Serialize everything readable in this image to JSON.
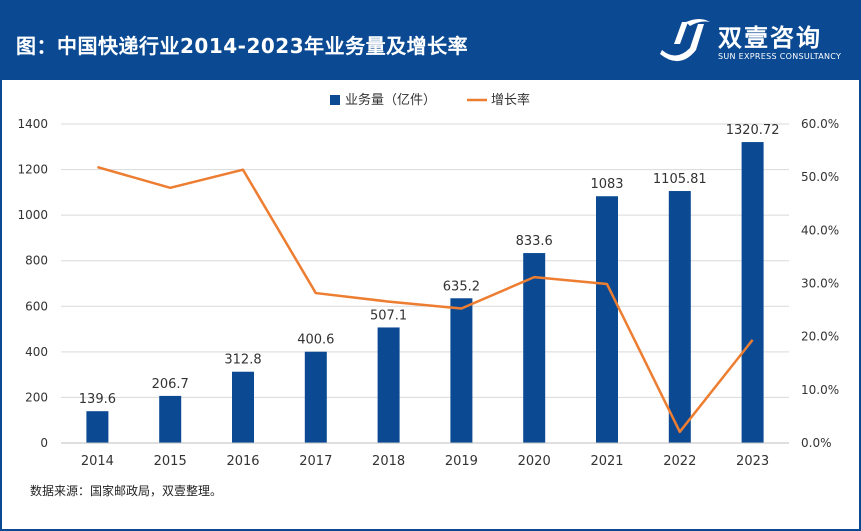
{
  "header": {
    "title": "图：中国快递行业2014-2023年业务量及增长率",
    "brand_cn": "双壹咨询",
    "brand_en": "SUN EXPRESS CONSULTANCY"
  },
  "colors": {
    "header_bg": "#0b4a93",
    "bar": "#0b4a93",
    "line": "#ed7d31"
  },
  "chart_data": {
    "type": "bar+line",
    "categories": [
      "2014",
      "2015",
      "2016",
      "2017",
      "2018",
      "2019",
      "2020",
      "2021",
      "2022",
      "2023"
    ],
    "series": [
      {
        "name": "业务量（亿件）",
        "type": "bar",
        "axis": "left",
        "values": [
          139.6,
          206.7,
          312.8,
          400.6,
          507.1,
          635.2,
          833.6,
          1083,
          1105.81,
          1320.72
        ],
        "labels": [
          "139.6",
          "206.7",
          "312.8",
          "400.6",
          "507.1",
          "635.2",
          "833.6",
          "1083",
          "1105.81",
          "1320.72"
        ]
      },
      {
        "name": "增长率",
        "type": "line",
        "axis": "right",
        "values": [
          51.9,
          48.0,
          51.4,
          28.2,
          26.6,
          25.3,
          31.2,
          29.9,
          2.1,
          19.4
        ]
      }
    ],
    "y_left": {
      "min": 0,
      "max": 1400,
      "ticks": [
        "0",
        "200",
        "400",
        "600",
        "800",
        "1000",
        "1200",
        "1400"
      ]
    },
    "y_right": {
      "min": 0,
      "max": 60,
      "ticks": [
        "0.0%",
        "10.0%",
        "20.0%",
        "30.0%",
        "40.0%",
        "50.0%",
        "60.0%"
      ]
    },
    "legend_position": "top-center"
  },
  "footer": {
    "source": "数据来源：国家邮政局，双壹整理。"
  }
}
